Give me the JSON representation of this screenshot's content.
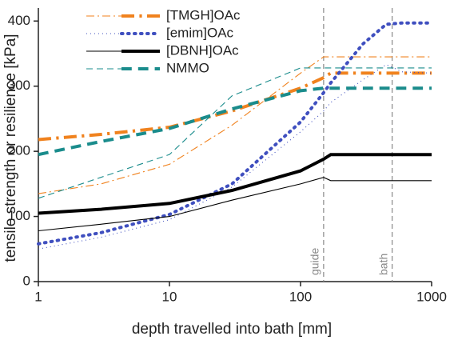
{
  "chart_data": {
    "type": "line",
    "xlabel": "depth travelled into bath [mm]",
    "ylabel": "tensile strength or resilience [kPa]",
    "xscale": "log",
    "x": [
      1,
      3,
      10,
      30,
      100,
      150,
      170,
      300,
      450,
      600,
      1000
    ],
    "xlim": [
      1,
      1000
    ],
    "xticks": [
      1,
      10,
      100,
      1000
    ],
    "ylim": [
      0,
      420
    ],
    "yticks": [
      0,
      100,
      200,
      300,
      400
    ],
    "legend": "upper left",
    "vlines": [
      {
        "value": 150,
        "label": "guide"
      },
      {
        "value": 500,
        "label": "bath"
      }
    ],
    "series": [
      {
        "name": "[TMGH]OAc",
        "color": "#f0821e",
        "dash": "10 4 2 4",
        "thin": [
          135,
          150,
          180,
          240,
          320,
          345,
          345,
          345,
          345,
          345,
          345
        ],
        "thick": [
          218,
          226,
          237,
          262,
          297,
          313,
          320,
          320,
          320,
          320,
          320
        ]
      },
      {
        "name": "[emim]OAc",
        "color": "#3f4fbf",
        "dash": "1 4",
        "thin": [
          50,
          68,
          95,
          145,
          230,
          262,
          275,
          310,
          333,
          322,
          320
        ],
        "thick": [
          58,
          75,
          103,
          150,
          245,
          290,
          305,
          365,
          395,
          397,
          397
        ]
      },
      {
        "name": "[DBNH]OAc",
        "color": "#000000",
        "dash": "none",
        "thin": [
          78,
          88,
          100,
          125,
          150,
          160,
          155,
          155,
          155,
          155,
          155
        ],
        "thick": [
          105,
          111,
          120,
          140,
          170,
          188,
          195,
          195,
          195,
          195,
          195
        ]
      },
      {
        "name": "NMMO",
        "color": "#1a8c8c",
        "dash": "8 5",
        "thin": [
          128,
          160,
          195,
          285,
          328,
          328,
          328,
          328,
          328,
          328,
          328
        ],
        "thick": [
          195,
          215,
          235,
          265,
          293,
          297,
          297,
          297,
          297,
          297,
          297
        ]
      }
    ]
  }
}
